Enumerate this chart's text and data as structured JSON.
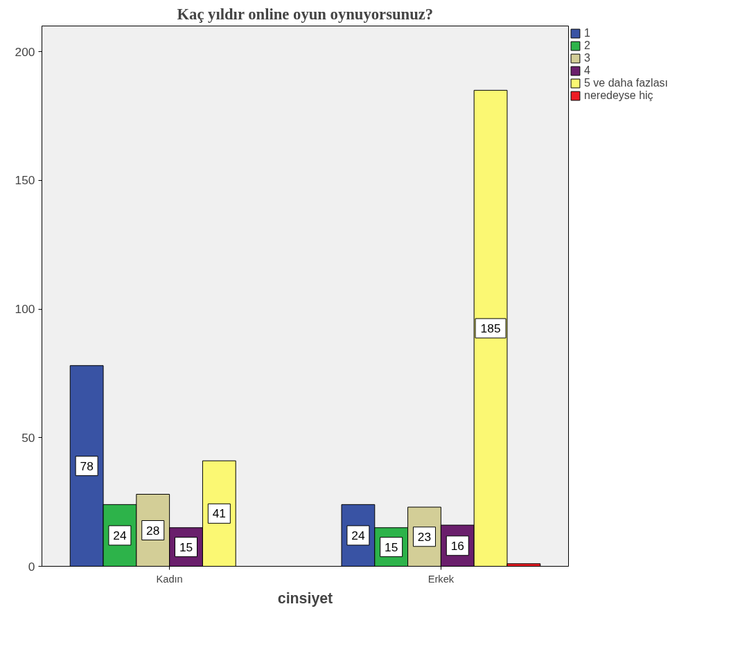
{
  "chart_data": {
    "type": "bar",
    "title": "Kaç yıldır online oyun oynuyorsunuz?",
    "xlabel": "cinsiyet",
    "categories": [
      "Kadın",
      "Erkek"
    ],
    "series": [
      {
        "name": "1",
        "color": "#3953a4",
        "values": [
          78,
          24
        ],
        "value_labels": [
          "78",
          "24"
        ]
      },
      {
        "name": "2",
        "color": "#2db34a",
        "values": [
          24,
          15
        ],
        "value_labels": [
          "24",
          "15"
        ]
      },
      {
        "name": "3",
        "color": "#d3ce97",
        "values": [
          28,
          23
        ],
        "value_labels": [
          "28",
          "23"
        ]
      },
      {
        "name": "4",
        "color": "#6a1f6c",
        "values": [
          15,
          16
        ],
        "value_labels": [
          "15",
          "16"
        ]
      },
      {
        "name": "5 ve daha fazlası",
        "color": "#fbf873",
        "values": [
          41,
          185
        ],
        "value_labels": [
          "41",
          "185"
        ]
      },
      {
        "name": "neredeyse hiç",
        "color": "#ed1c24",
        "values": [
          null,
          1
        ],
        "value_labels": [
          null,
          null
        ]
      }
    ],
    "ylim": [
      0,
      210
    ],
    "yticks": [
      0,
      50,
      100,
      150,
      200
    ],
    "grid": false,
    "legend": "top right"
  }
}
